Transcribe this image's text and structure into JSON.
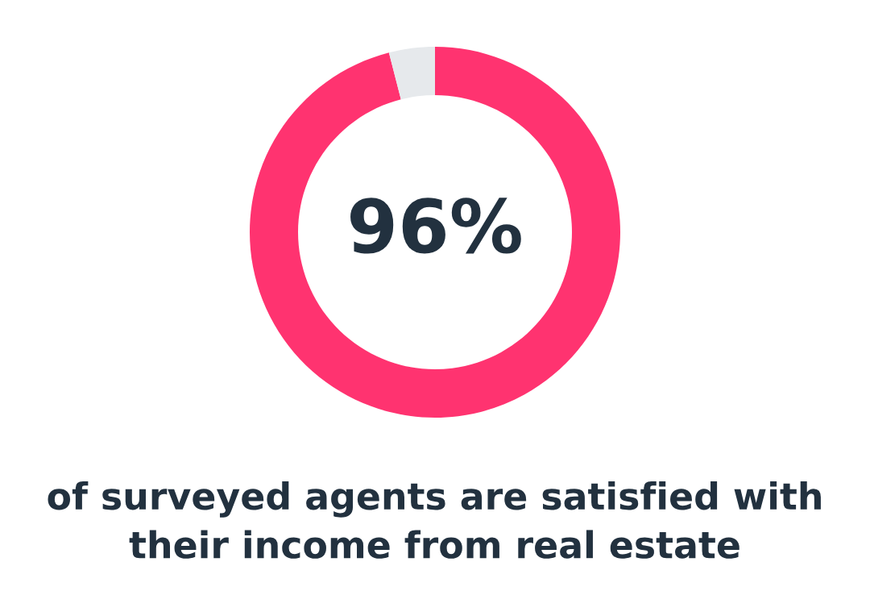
{
  "chart_data": {
    "type": "donut",
    "categories": [
      null,
      null
    ],
    "values": [
      96,
      4
    ],
    "colors": [
      "#ff3370",
      "#e6e9ec"
    ],
    "value_labels": [
      "96%",
      null
    ],
    "annotations": [
      "of surveyed agents are satisfied with their income from real estate"
    ]
  }
}
